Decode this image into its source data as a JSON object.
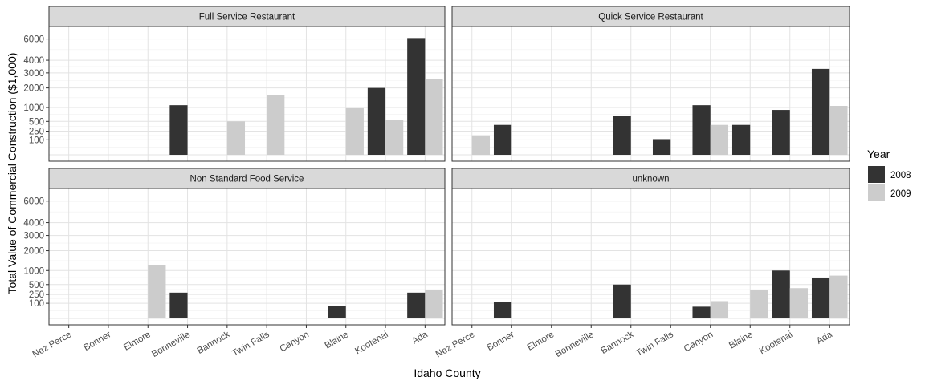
{
  "chart_data": {
    "type": "bar",
    "xlabel": "Idaho County",
    "ylabel": "Total Value of Commercial Construction ($1,000)",
    "y_scale": "sqrt",
    "ylim": [
      0,
      7000
    ],
    "y_ticks": [
      100,
      250,
      500,
      1000,
      2000,
      3000,
      4000,
      6000
    ],
    "grid": true,
    "legend_position": "right",
    "categories": [
      "Nez Perce",
      "Bonner",
      "Elmore",
      "Bonneville",
      "Bannock",
      "Twin Falls",
      "Canyon",
      "Blaine",
      "Kootenai",
      "Ada"
    ],
    "legend": {
      "title": "Year",
      "items": [
        {
          "label": "2008",
          "color": "#333333"
        },
        {
          "label": "2009",
          "color": "#cccccc"
        }
      ]
    },
    "panels": [
      {
        "title": "Full Service Restaurant",
        "series": [
          {
            "name": "2008",
            "values": [
              null,
              null,
              null,
              1100,
              null,
              null,
              null,
              null,
              2000,
              6100
            ]
          },
          {
            "name": "2009",
            "values": [
              null,
              null,
              null,
              null,
              500,
              1600,
              null,
              970,
              540,
              2550
            ]
          }
        ]
      },
      {
        "title": "Quick Service Restaurant",
        "series": [
          {
            "name": "2008",
            "values": [
              null,
              400,
              null,
              null,
              670,
              110,
              1100,
              400,
              900,
              3300
            ]
          },
          {
            "name": "2009",
            "values": [
              170,
              null,
              null,
              null,
              null,
              null,
              400,
              null,
              null,
              1070
            ]
          }
        ]
      },
      {
        "title": "Non Standard Food Service",
        "series": [
          {
            "name": "2008",
            "values": [
              null,
              null,
              null,
              290,
              null,
              null,
              null,
              70,
              null,
              290
            ]
          },
          {
            "name": "2009",
            "values": [
              null,
              null,
              1250,
              null,
              null,
              null,
              null,
              null,
              null,
              350
            ]
          }
        ]
      },
      {
        "title": "unknown",
        "series": [
          {
            "name": "2008",
            "values": [
              null,
              120,
              null,
              null,
              500,
              null,
              60,
              null,
              1000,
              730
            ]
          },
          {
            "name": "2009",
            "values": [
              null,
              null,
              null,
              null,
              null,
              null,
              130,
              350,
              400,
              800
            ]
          }
        ]
      }
    ]
  }
}
